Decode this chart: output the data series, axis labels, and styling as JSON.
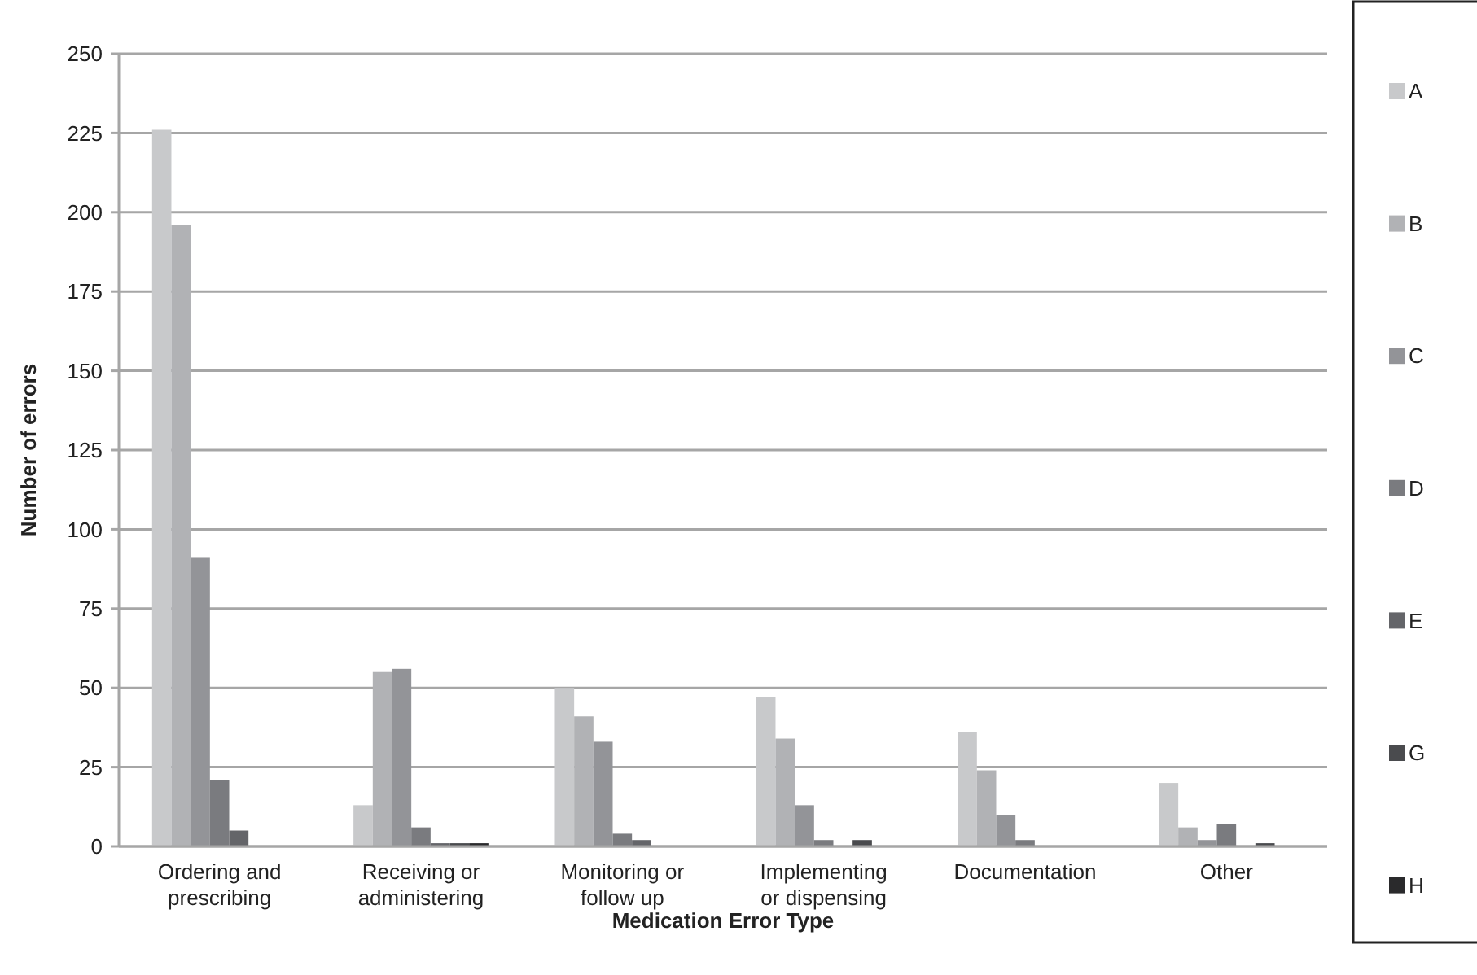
{
  "chart_data": {
    "type": "bar",
    "xlabel": "Medication Error Type",
    "ylabel": "Number of errors",
    "categories": [
      "Ordering and prescribing",
      "Receiving or administering",
      "Monitoring or follow up",
      "Implementing or dispensing",
      "Documentation",
      "Other"
    ],
    "series": [
      {
        "name": "A",
        "color": "#c8c9cb",
        "values": [
          226,
          13,
          50,
          47,
          36,
          20
        ]
      },
      {
        "name": "B",
        "color": "#b1b2b5",
        "values": [
          196,
          55,
          41,
          34,
          24,
          6
        ]
      },
      {
        "name": "C",
        "color": "#939498",
        "values": [
          91,
          56,
          33,
          13,
          10,
          2
        ]
      },
      {
        "name": "D",
        "color": "#7a7b7f",
        "values": [
          21,
          6,
          4,
          2,
          2,
          7
        ]
      },
      {
        "name": "E",
        "color": "#646569",
        "values": [
          5,
          1,
          2,
          0,
          0,
          0
        ]
      },
      {
        "name": "G",
        "color": "#4a4b4e",
        "values": [
          0,
          1,
          0,
          2,
          0,
          1
        ]
      },
      {
        "name": "H",
        "color": "#2a2a2c",
        "values": [
          0,
          1,
          0,
          0,
          0,
          0
        ]
      }
    ],
    "ylim": [
      0,
      250
    ],
    "yticks": [
      0,
      25,
      50,
      75,
      100,
      125,
      150,
      175,
      200,
      225,
      250
    ],
    "grid": "y",
    "legend": "right"
  }
}
